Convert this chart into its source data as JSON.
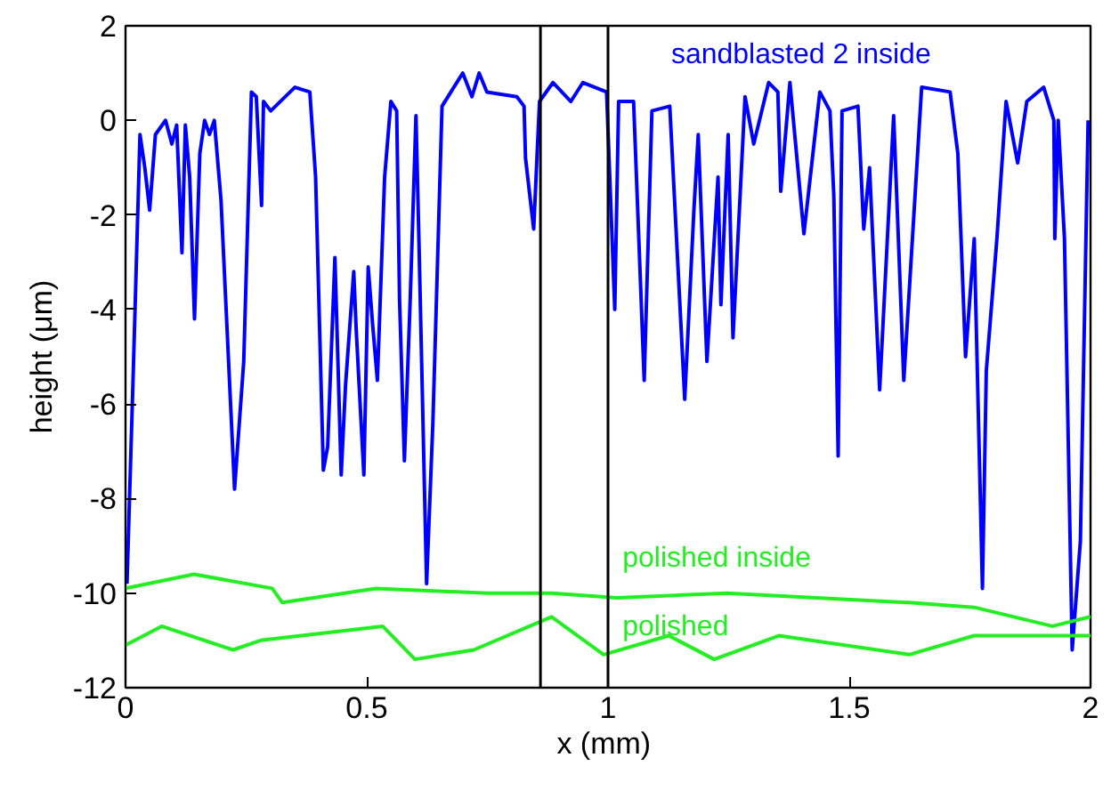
{
  "chart_data": {
    "type": "line",
    "xlabel": "x  (mm)",
    "ylabel": "height (μm)",
    "xlim": [
      0,
      2
    ],
    "ylim": [
      -12,
      2
    ],
    "xticks": [
      0,
      0.5,
      1,
      1.5,
      2
    ],
    "yticks": [
      -12,
      -10,
      -8,
      -6,
      -4,
      -2,
      0,
      2
    ],
    "grid": false,
    "legend": false,
    "marker": "none",
    "line_style": "solid",
    "ref_lines": [
      {
        "axis": "x",
        "value": 0.86,
        "color": "#000000"
      },
      {
        "axis": "x",
        "value": 1.0,
        "color": "#000000"
      }
    ],
    "series": [
      {
        "name": "sandblasted 2 inside",
        "color": "#0000ff",
        "x": [
          0.003,
          0.015,
          0.03,
          0.04,
          0.05,
          0.062,
          0.083,
          0.096,
          0.106,
          0.117,
          0.124,
          0.133,
          0.143,
          0.154,
          0.164,
          0.174,
          0.184,
          0.198,
          0.226,
          0.245,
          0.261,
          0.271,
          0.282,
          0.286,
          0.301,
          0.351,
          0.382,
          0.394,
          0.41,
          0.419,
          0.434,
          0.447,
          0.456,
          0.473,
          0.478,
          0.494,
          0.503,
          0.512,
          0.522,
          0.537,
          0.55,
          0.562,
          0.568,
          0.578,
          0.59,
          0.602,
          0.608,
          0.624,
          0.637,
          0.656,
          0.699,
          0.718,
          0.733,
          0.749,
          0.811,
          0.826,
          0.829,
          0.846,
          0.858,
          0.886,
          0.923,
          0.948,
          0.997,
          1.014,
          1.022,
          1.053,
          1.075,
          1.091,
          1.128,
          1.159,
          1.178,
          1.187,
          1.205,
          1.228,
          1.234,
          1.249,
          1.259,
          1.284,
          1.302,
          1.333,
          1.352,
          1.358,
          1.377,
          1.406,
          1.439,
          1.46,
          1.468,
          1.477,
          1.485,
          1.518,
          1.53,
          1.542,
          1.563,
          1.592,
          1.613,
          1.65,
          1.709,
          1.725,
          1.741,
          1.759,
          1.776,
          1.784,
          1.806,
          1.825,
          1.849,
          1.868,
          1.903,
          1.924,
          1.926,
          1.933,
          1.946,
          1.962,
          1.979,
          1.995
        ],
        "values": [
          -9.8,
          -5.7,
          -0.3,
          -1.0,
          -1.9,
          -0.3,
          0.0,
          -0.5,
          -0.1,
          -2.8,
          -0.1,
          -1.2,
          -4.2,
          -0.7,
          0.0,
          -0.3,
          0.0,
          -1.7,
          -7.8,
          -5.1,
          0.6,
          0.5,
          -1.8,
          0.4,
          0.2,
          0.7,
          0.6,
          -1.2,
          -7.4,
          -6.9,
          -2.9,
          -7.5,
          -5.6,
          -3.2,
          -4.4,
          -7.5,
          -3.1,
          -4.3,
          -5.5,
          -1.2,
          0.4,
          0.2,
          -3.8,
          -7.2,
          -3.8,
          0.1,
          -2.5,
          -9.8,
          -6.4,
          0.3,
          1.0,
          0.5,
          1.0,
          0.6,
          0.5,
          0.3,
          -0.8,
          -2.3,
          0.4,
          0.8,
          0.4,
          0.8,
          0.6,
          -4.0,
          0.4,
          0.4,
          -5.5,
          0.2,
          0.3,
          -5.9,
          -1.9,
          -0.3,
          -5.1,
          -1.2,
          -3.9,
          -0.3,
          -4.6,
          0.5,
          -0.5,
          0.8,
          0.6,
          -1.5,
          0.8,
          -2.4,
          0.6,
          0.2,
          -1.6,
          -7.1,
          0.2,
          0.3,
          -2.3,
          -1.0,
          -5.7,
          0.1,
          -5.5,
          0.7,
          0.6,
          -0.7,
          -5.0,
          -2.5,
          -9.9,
          -5.3,
          -2.5,
          0.4,
          -0.9,
          0.4,
          0.7,
          0.0,
          -2.5,
          0.0,
          -2.5,
          -11.2,
          -8.9,
          0.0
        ]
      },
      {
        "name": "polished inside",
        "color": "#22ee22",
        "x": [
          0,
          0.142,
          0.304,
          0.325,
          0.519,
          0.749,
          0.883,
          1.018,
          1.246,
          1.624,
          1.759,
          1.921,
          2.0
        ],
        "values": [
          -9.9,
          -9.6,
          -9.9,
          -10.2,
          -9.9,
          -10.0,
          -10.0,
          -10.1,
          -10.0,
          -10.2,
          -10.3,
          -10.7,
          -10.5
        ]
      },
      {
        "name": "polished",
        "color": "#22ee22",
        "x": [
          0,
          0.075,
          0.223,
          0.28,
          0.533,
          0.6,
          0.722,
          0.883,
          0.991,
          1.126,
          1.22,
          1.354,
          1.624,
          1.759,
          1.934,
          2.0
        ],
        "values": [
          -11.1,
          -10.7,
          -11.2,
          -11.0,
          -10.7,
          -11.4,
          -11.2,
          -10.5,
          -11.3,
          -10.9,
          -11.4,
          -10.9,
          -11.3,
          -10.9,
          -10.9,
          -10.9
        ]
      }
    ]
  }
}
